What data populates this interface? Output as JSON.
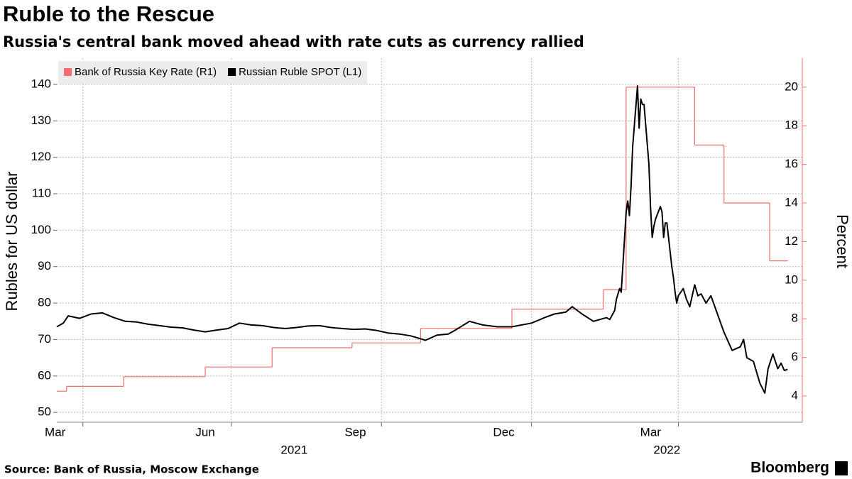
{
  "chart_data": {
    "type": "line",
    "title": "Ruble to the Rescue",
    "subtitle": "Russia's central bank moved ahead with rate cuts as currency rallied",
    "y_label": "Rubles for US dollar",
    "y2_label": "Percent",
    "source": "Source: Bank of Russia, Moscow Exchange",
    "brand": "Bloomberg",
    "xlim": [
      "2021-03-16",
      "2022-06-16"
    ],
    "xticks": [
      {
        "value": "2021-03",
        "label": "Mar"
      },
      {
        "value": "2021-06",
        "label": "Jun"
      },
      {
        "value": "2021-09",
        "label": "Sep"
      },
      {
        "value": "2021-12",
        "label": "Dec"
      },
      {
        "value": "2022-03",
        "label": "Mar"
      }
    ],
    "x_years": [
      "2021",
      "2022"
    ],
    "ylim": [
      47.3,
      147.2
    ],
    "yticks": [
      50,
      60,
      70,
      80,
      90,
      100,
      110,
      120,
      130,
      140
    ],
    "y2lim": [
      2.64,
      21.5
    ],
    "y2ticks": [
      4,
      6,
      8,
      10,
      12,
      14,
      16,
      18,
      20
    ],
    "y2_color": "#f26d6d",
    "grid": true,
    "legend": "top-left",
    "series": [
      {
        "name": "Bank of Russia Key Rate (R1)",
        "color": "#f26d6d",
        "axis": "y2",
        "step": "post",
        "x": [
          "2021-03-16",
          "2021-03-22",
          "2021-04-26",
          "2021-06-15",
          "2021-07-26",
          "2021-09-13",
          "2021-10-25",
          "2021-12-20",
          "2022-02-14",
          "2022-02-28",
          "2022-04-11",
          "2022-04-29",
          "2022-05-27",
          "2022-06-07"
        ],
        "values": [
          4.25,
          4.5,
          5,
          5.5,
          6.5,
          6.75,
          7.5,
          8.5,
          9.5,
          20,
          17,
          14,
          11,
          11
        ]
      },
      {
        "name": "Russian Ruble SPOT (L1)",
        "color": "#000000",
        "x": [
          "2021-03-16",
          "2021-03-20",
          "2021-03-23",
          "2021-03-30",
          "2021-04-06",
          "2021-04-13",
          "2021-04-20",
          "2021-04-27",
          "2021-05-04",
          "2021-05-11",
          "2021-05-18",
          "2021-05-25",
          "2021-06-01",
          "2021-06-08",
          "2021-06-15",
          "2021-06-22",
          "2021-06-29",
          "2021-07-06",
          "2021-07-13",
          "2021-07-20",
          "2021-07-27",
          "2021-08-03",
          "2021-08-10",
          "2021-08-17",
          "2021-08-24",
          "2021-08-31",
          "2021-09-07",
          "2021-09-14",
          "2021-09-21",
          "2021-09-28",
          "2021-10-05",
          "2021-10-12",
          "2021-10-19",
          "2021-10-25",
          "2021-10-28",
          "2021-11-04",
          "2021-11-11",
          "2021-11-15",
          "2021-11-24",
          "2021-12-02",
          "2021-12-11",
          "2021-12-20",
          "2022-01-01",
          "2022-01-09",
          "2022-01-15",
          "2022-01-22",
          "2022-01-26",
          "2022-02-01",
          "2022-02-08",
          "2022-02-16",
          "2022-02-18",
          "2022-02-21",
          "2022-02-22",
          "2022-02-24",
          "2022-02-25",
          "2022-02-28",
          "2022-03-01",
          "2022-03-02",
          "2022-03-03",
          "2022-03-04",
          "2022-03-07",
          "2022-03-08",
          "2022-03-09",
          "2022-03-10",
          "2022-03-11",
          "2022-03-14",
          "2022-03-15",
          "2022-03-16",
          "2022-03-17",
          "2022-03-18",
          "2022-03-21",
          "2022-03-22",
          "2022-03-23",
          "2022-03-24",
          "2022-03-25",
          "2022-03-28",
          "2022-03-29",
          "2022-03-30",
          "2022-03-31",
          "2022-04-01",
          "2022-04-04",
          "2022-04-06",
          "2022-04-08",
          "2022-04-11",
          "2022-04-13",
          "2022-04-15",
          "2022-04-18",
          "2022-04-21",
          "2022-04-25",
          "2022-04-29",
          "2022-05-04",
          "2022-05-09",
          "2022-05-11",
          "2022-05-13",
          "2022-05-17",
          "2022-05-21",
          "2022-05-24",
          "2022-05-26",
          "2022-05-29",
          "2022-06-01",
          "2022-06-03",
          "2022-06-05",
          "2022-06-07"
        ],
        "values": [
          73.5,
          74.5,
          76.5,
          75.8,
          77,
          77.3,
          76,
          75,
          74.8,
          74.2,
          73.8,
          73.4,
          73.2,
          72.6,
          72.1,
          72.6,
          73,
          74.5,
          74,
          73.8,
          73.3,
          73,
          73.3,
          73.7,
          73.8,
          73.3,
          73,
          72.8,
          72.9,
          72.5,
          71.8,
          71.5,
          71,
          70.2,
          69.8,
          71.2,
          71.5,
          72.5,
          75,
          74,
          73.5,
          73.5,
          74.5,
          76,
          77,
          77.5,
          79,
          77,
          75,
          76,
          75.5,
          78,
          81,
          84,
          83,
          105,
          108,
          104,
          112,
          123,
          139.6,
          128,
          136,
          134.5,
          134.5,
          118,
          106,
          98,
          101,
          103,
          106.5,
          105,
          98,
          102,
          102,
          90,
          87,
          83,
          80,
          82,
          84,
          81,
          79,
          85,
          82,
          82.5,
          80,
          82,
          77,
          72,
          67,
          68,
          70,
          65,
          64,
          58,
          55.3,
          62,
          66,
          62,
          63.5,
          61.5,
          61.8
        ]
      }
    ]
  }
}
